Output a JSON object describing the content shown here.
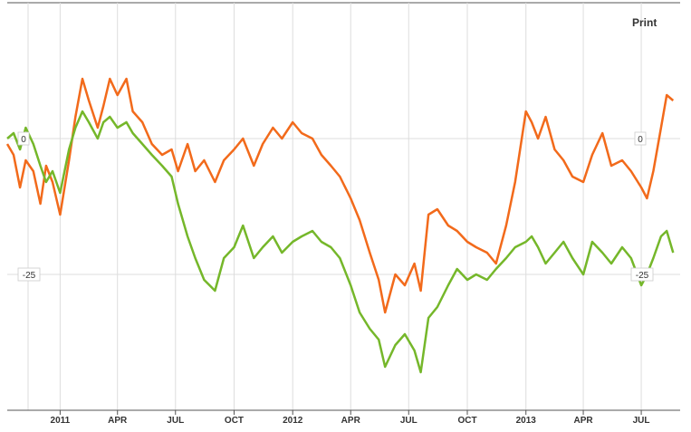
{
  "toolbar": {
    "print_label": "Print"
  },
  "colors": {
    "series_a": "#f26a1b",
    "series_b": "#75b72a",
    "grid": "#dddddd",
    "axis": "#555555"
  },
  "chart_data": {
    "type": "line",
    "title": "",
    "xlabel": "",
    "ylabel": "",
    "x_tick_labels": [
      "2011",
      "APR",
      "JUL",
      "OCT",
      "2012",
      "APR",
      "JUL",
      "OCT",
      "2013",
      "APR",
      "JUL"
    ],
    "x_tick_dates": [
      "2011-01-01",
      "2011-04-01",
      "2011-07-01",
      "2011-10-01",
      "2012-01-01",
      "2012-04-01",
      "2012-07-01",
      "2012-10-01",
      "2013-01-01",
      "2013-04-01",
      "2013-07-01"
    ],
    "xlim": [
      "2010-10-10",
      "2013-08-31"
    ],
    "ylim": [
      -50,
      25
    ],
    "y_ticks_left": [
      "0",
      "-25"
    ],
    "y_ticks_right": [
      "0",
      "-25"
    ],
    "grid": true,
    "legend": "none",
    "series": [
      {
        "color": "#f26a1b",
        "points": [
          [
            "2010-10-10",
            -1
          ],
          [
            "2010-10-20",
            -3
          ],
          [
            "2010-10-30",
            -9
          ],
          [
            "2010-11-08",
            -4
          ],
          [
            "2010-11-20",
            -6
          ],
          [
            "2010-12-01",
            -12
          ],
          [
            "2010-12-10",
            -5
          ],
          [
            "2010-12-20",
            -8
          ],
          [
            "2011-01-01",
            -14
          ],
          [
            "2011-01-15",
            -4
          ],
          [
            "2011-01-25",
            4
          ],
          [
            "2011-02-05",
            11
          ],
          [
            "2011-02-15",
            7
          ],
          [
            "2011-03-01",
            2
          ],
          [
            "2011-03-10",
            6
          ],
          [
            "2011-03-20",
            11
          ],
          [
            "2011-04-01",
            8
          ],
          [
            "2011-04-15",
            11
          ],
          [
            "2011-04-25",
            5
          ],
          [
            "2011-05-10",
            3
          ],
          [
            "2011-05-25",
            -1
          ],
          [
            "2011-06-10",
            -3
          ],
          [
            "2011-06-25",
            -2
          ],
          [
            "2011-07-05",
            -6
          ],
          [
            "2011-07-20",
            -1
          ],
          [
            "2011-08-01",
            -6
          ],
          [
            "2011-08-15",
            -4
          ],
          [
            "2011-09-01",
            -8
          ],
          [
            "2011-09-15",
            -4
          ],
          [
            "2011-10-01",
            -2
          ],
          [
            "2011-10-15",
            0
          ],
          [
            "2011-11-01",
            -5
          ],
          [
            "2011-11-15",
            -1
          ],
          [
            "2011-12-01",
            2
          ],
          [
            "2011-12-15",
            0
          ],
          [
            "2012-01-01",
            3
          ],
          [
            "2012-01-15",
            1
          ],
          [
            "2012-02-01",
            0
          ],
          [
            "2012-02-15",
            -3
          ],
          [
            "2012-03-01",
            -5
          ],
          [
            "2012-03-15",
            -7
          ],
          [
            "2012-04-01",
            -11
          ],
          [
            "2012-04-15",
            -15
          ],
          [
            "2012-05-01",
            -21
          ],
          [
            "2012-05-15",
            -26
          ],
          [
            "2012-05-25",
            -32
          ],
          [
            "2012-06-10",
            -25
          ],
          [
            "2012-06-25",
            -27
          ],
          [
            "2012-07-10",
            -23
          ],
          [
            "2012-07-20",
            -28
          ],
          [
            "2012-08-01",
            -14
          ],
          [
            "2012-08-15",
            -13
          ],
          [
            "2012-09-01",
            -16
          ],
          [
            "2012-09-15",
            -17
          ],
          [
            "2012-10-01",
            -19
          ],
          [
            "2012-10-15",
            -20
          ],
          [
            "2012-11-01",
            -21
          ],
          [
            "2012-11-15",
            -23
          ],
          [
            "2012-12-01",
            -16
          ],
          [
            "2012-12-15",
            -8
          ],
          [
            "2013-01-01",
            5
          ],
          [
            "2013-01-10",
            3
          ],
          [
            "2013-01-20",
            0
          ],
          [
            "2013-02-01",
            4
          ],
          [
            "2013-02-15",
            -2
          ],
          [
            "2013-03-01",
            -4
          ],
          [
            "2013-03-15",
            -7
          ],
          [
            "2013-04-01",
            -8
          ],
          [
            "2013-04-15",
            -3
          ],
          [
            "2013-05-01",
            1
          ],
          [
            "2013-05-15",
            -5
          ],
          [
            "2013-06-01",
            -4
          ],
          [
            "2013-06-15",
            -6
          ],
          [
            "2013-07-01",
            -9
          ],
          [
            "2013-07-10",
            -11
          ],
          [
            "2013-07-20",
            -6
          ],
          [
            "2013-08-01",
            2
          ],
          [
            "2013-08-10",
            8
          ],
          [
            "2013-08-20",
            7
          ]
        ]
      },
      {
        "color": "#75b72a",
        "points": [
          [
            "2010-10-10",
            0
          ],
          [
            "2010-10-20",
            1
          ],
          [
            "2010-10-30",
            -2
          ],
          [
            "2010-11-08",
            2
          ],
          [
            "2010-11-20",
            -1
          ],
          [
            "2010-12-01",
            -5
          ],
          [
            "2010-12-10",
            -8
          ],
          [
            "2010-12-20",
            -6
          ],
          [
            "2011-01-01",
            -10
          ],
          [
            "2011-01-15",
            -2
          ],
          [
            "2011-01-25",
            2
          ],
          [
            "2011-02-05",
            5
          ],
          [
            "2011-02-15",
            3
          ],
          [
            "2011-03-01",
            0
          ],
          [
            "2011-03-10",
            3
          ],
          [
            "2011-03-20",
            4
          ],
          [
            "2011-04-01",
            2
          ],
          [
            "2011-04-15",
            3
          ],
          [
            "2011-04-25",
            1
          ],
          [
            "2011-05-10",
            -1
          ],
          [
            "2011-05-25",
            -3
          ],
          [
            "2011-06-10",
            -5
          ],
          [
            "2011-06-25",
            -7
          ],
          [
            "2011-07-05",
            -12
          ],
          [
            "2011-07-20",
            -18
          ],
          [
            "2011-08-01",
            -22
          ],
          [
            "2011-08-15",
            -26
          ],
          [
            "2011-09-01",
            -28
          ],
          [
            "2011-09-15",
            -22
          ],
          [
            "2011-10-01",
            -20
          ],
          [
            "2011-10-15",
            -16
          ],
          [
            "2011-11-01",
            -22
          ],
          [
            "2011-11-15",
            -20
          ],
          [
            "2011-12-01",
            -18
          ],
          [
            "2011-12-15",
            -21
          ],
          [
            "2012-01-01",
            -19
          ],
          [
            "2012-01-15",
            -18
          ],
          [
            "2012-02-01",
            -17
          ],
          [
            "2012-02-15",
            -19
          ],
          [
            "2012-03-01",
            -20
          ],
          [
            "2012-03-15",
            -22
          ],
          [
            "2012-04-01",
            -27
          ],
          [
            "2012-04-15",
            -32
          ],
          [
            "2012-05-01",
            -35
          ],
          [
            "2012-05-15",
            -37
          ],
          [
            "2012-05-25",
            -42
          ],
          [
            "2012-06-10",
            -38
          ],
          [
            "2012-06-25",
            -36
          ],
          [
            "2012-07-10",
            -39
          ],
          [
            "2012-07-20",
            -43
          ],
          [
            "2012-08-01",
            -33
          ],
          [
            "2012-08-15",
            -31
          ],
          [
            "2012-09-01",
            -27
          ],
          [
            "2012-09-15",
            -24
          ],
          [
            "2012-10-01",
            -26
          ],
          [
            "2012-10-15",
            -25
          ],
          [
            "2012-11-01",
            -26
          ],
          [
            "2012-11-15",
            -24
          ],
          [
            "2012-12-01",
            -22
          ],
          [
            "2012-12-15",
            -20
          ],
          [
            "2013-01-01",
            -19
          ],
          [
            "2013-01-10",
            -18
          ],
          [
            "2013-01-20",
            -20
          ],
          [
            "2013-02-01",
            -23
          ],
          [
            "2013-02-15",
            -21
          ],
          [
            "2013-03-01",
            -19
          ],
          [
            "2013-03-15",
            -22
          ],
          [
            "2013-04-01",
            -25
          ],
          [
            "2013-04-15",
            -19
          ],
          [
            "2013-05-01",
            -21
          ],
          [
            "2013-05-15",
            -23
          ],
          [
            "2013-06-01",
            -20
          ],
          [
            "2013-06-15",
            -22
          ],
          [
            "2013-07-01",
            -27
          ],
          [
            "2013-07-10",
            -25
          ],
          [
            "2013-07-20",
            -22
          ],
          [
            "2013-08-01",
            -18
          ],
          [
            "2013-08-10",
            -17
          ],
          [
            "2013-08-20",
            -21
          ]
        ]
      }
    ]
  }
}
